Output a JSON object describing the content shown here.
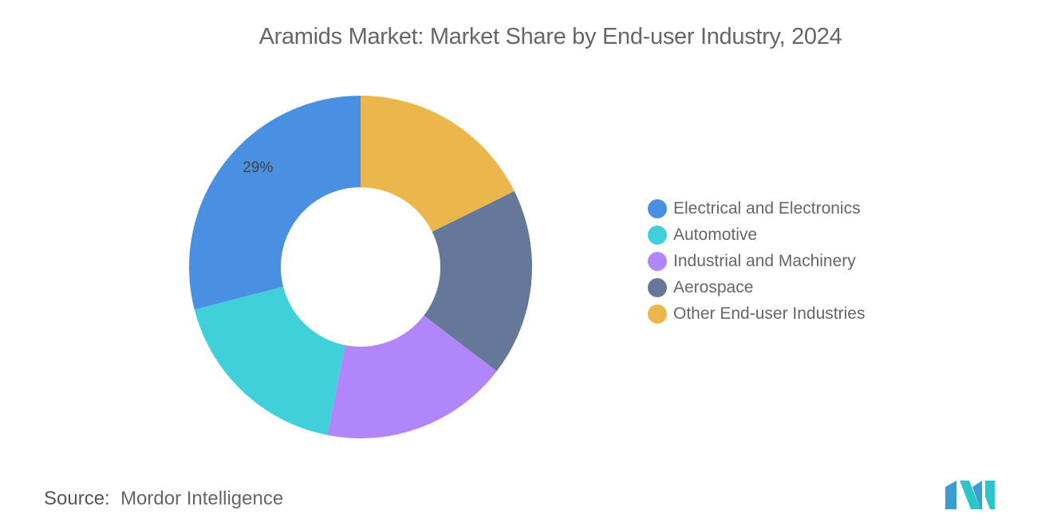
{
  "title": "Aramids Market: Market Share by End-user Industry, 2024",
  "source_label": "Source:",
  "source_value": "Mordor Intelligence",
  "logo_text": "Mordor Intelligence",
  "chart_data": {
    "type": "pie",
    "donut": true,
    "title": "Aramids Market: Market Share by End-user Industry, 2024",
    "legend_position": "right",
    "slices": [
      {
        "name": "Electrical and Electronics",
        "value": 29,
        "color": "#4a90e2",
        "label": "29%"
      },
      {
        "name": "Automotive",
        "value": 17.9,
        "color": "#3fd0da",
        "label": ""
      },
      {
        "name": "Industrial and Machinery",
        "value": 17.7,
        "color": "#b286fb",
        "label": ""
      },
      {
        "name": "Aerospace",
        "value": 17.7,
        "color": "#657899",
        "label": ""
      },
      {
        "name": "Other End-user Industries",
        "value": 17.7,
        "color": "#ebb64c",
        "label": ""
      }
    ]
  }
}
